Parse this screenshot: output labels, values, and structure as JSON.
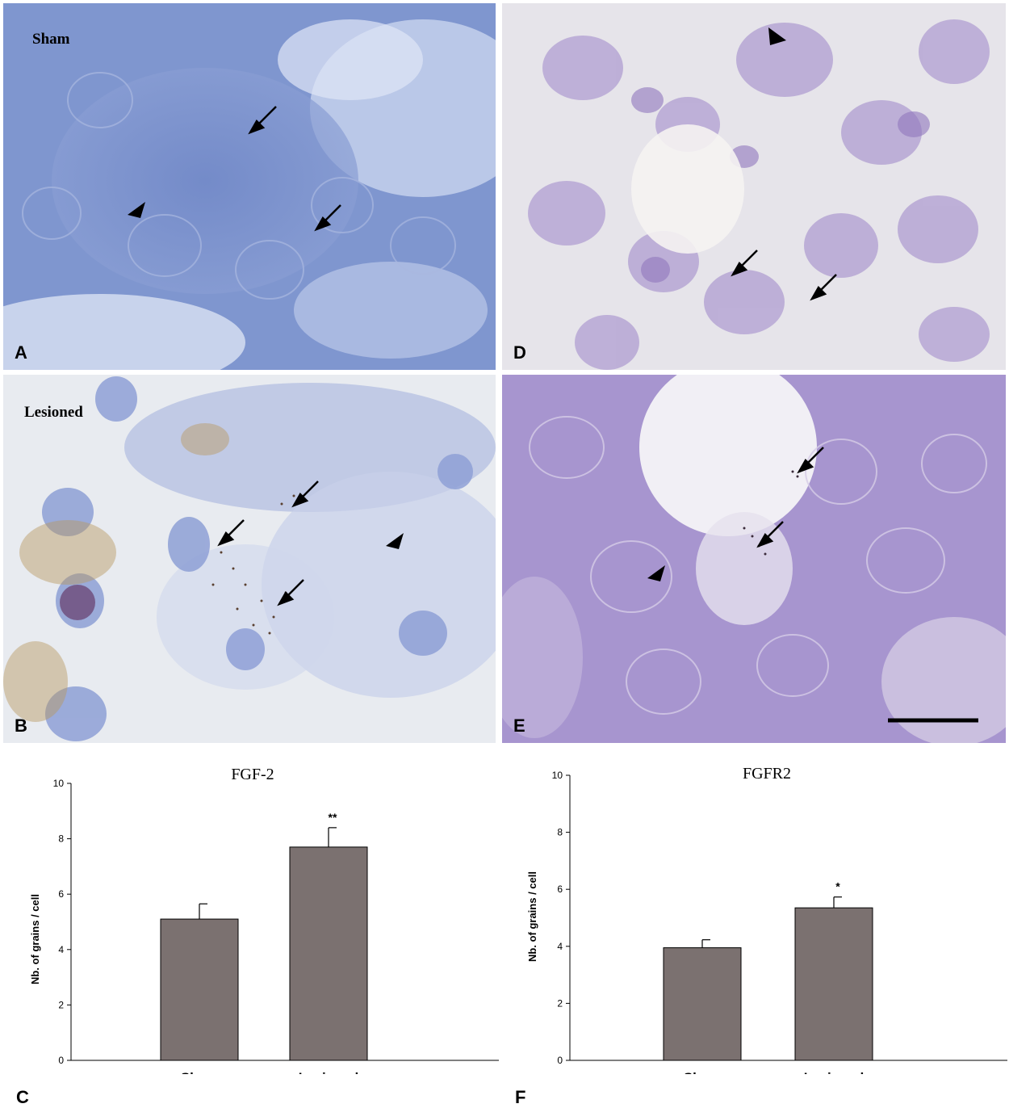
{
  "panels": [
    {
      "id": "A",
      "letter": "A",
      "caption": "Sham",
      "stain": "blue"
    },
    {
      "id": "B",
      "letter": "B",
      "caption": "Lesioned",
      "stain": "blue-light"
    },
    {
      "id": "D",
      "letter": "D",
      "caption": "",
      "stain": "violet"
    },
    {
      "id": "E",
      "letter": "E",
      "caption": "",
      "stain": "violet-dense"
    }
  ],
  "colors": {
    "bar_fill": "#7b7170",
    "blue_stain": "#7c93cc",
    "violet_stain": "#a996cf"
  },
  "chart_data": [
    {
      "panel_letter": "C",
      "type": "bar",
      "title": "FGF-2",
      "ylabel": "Nb. of grains / cell",
      "xlabel": "",
      "categories": [
        "Sham",
        "Lesioned"
      ],
      "values": [
        5.1,
        7.7
      ],
      "errors": [
        0.55,
        0.7
      ],
      "significance": [
        "",
        "**"
      ],
      "ylim": [
        0,
        10
      ],
      "yticks": [
        "0",
        "2",
        "4",
        "6",
        "8",
        "10"
      ],
      "grid": false,
      "legend": "none"
    },
    {
      "panel_letter": "F",
      "type": "bar",
      "title": "FGFR2",
      "ylabel": "Nb. of grains / cell",
      "xlabel": "",
      "categories": [
        "Sham",
        "Lesioned"
      ],
      "values": [
        3.95,
        5.35
      ],
      "errors": [
        0.28,
        0.38
      ],
      "significance": [
        "",
        "*"
      ],
      "ylim": [
        0,
        10
      ],
      "yticks": [
        "0",
        "2",
        "4",
        "6",
        "8",
        "10"
      ],
      "grid": false,
      "legend": "none"
    }
  ]
}
